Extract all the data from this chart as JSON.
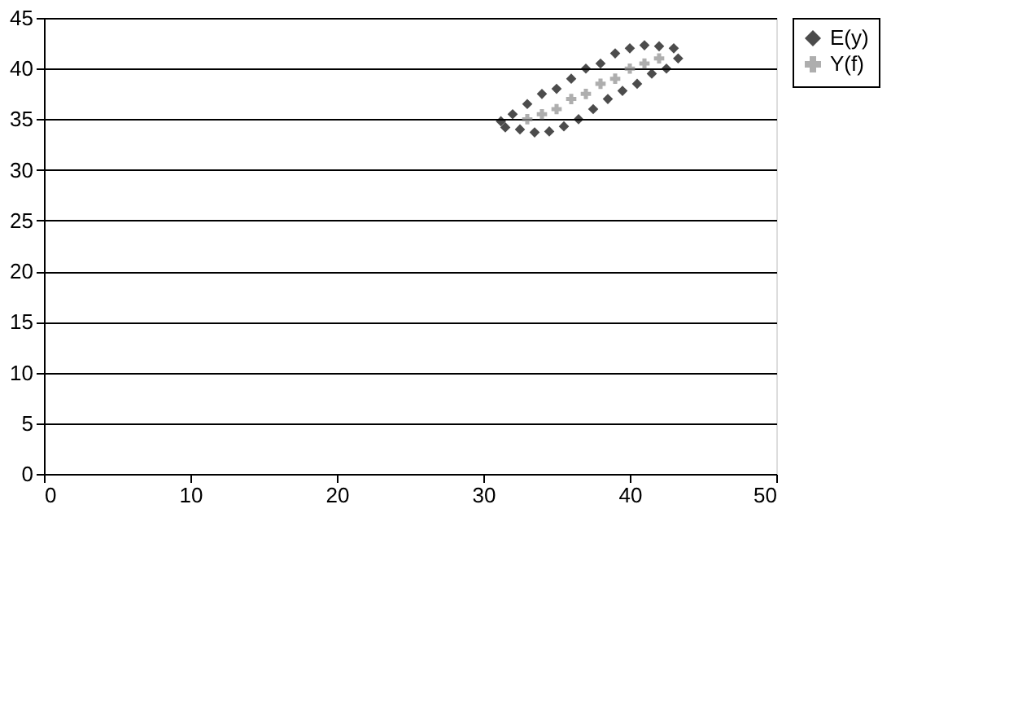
{
  "chart_data": {
    "type": "scatter",
    "xlim": [
      0,
      50
    ],
    "xticks": [
      0,
      10,
      20,
      30,
      40,
      50
    ],
    "ylim": [
      0,
      45
    ],
    "yticks": [
      0,
      5,
      10,
      15,
      20,
      25,
      30,
      35,
      40,
      45
    ],
    "grid": "y",
    "legend": "right",
    "series": [
      {
        "name": "E(y)",
        "color": "#000000",
        "marker": "diamond",
        "x": [
          31.2,
          32,
          33,
          34,
          35,
          36,
          37,
          38,
          39,
          40,
          41,
          42,
          43,
          43.3,
          42.5,
          41.5,
          40.5,
          39.5,
          38.5,
          37.5,
          36.5,
          35.5,
          34.5,
          33.5,
          32.5,
          31.5
        ],
        "values": [
          34.8,
          35.5,
          36.5,
          37.5,
          38,
          39,
          40,
          40.5,
          41.5,
          42,
          42.3,
          42.2,
          42,
          41,
          40,
          39.5,
          38.5,
          37.8,
          37,
          36,
          35,
          34.3,
          33.8,
          33.7,
          34,
          34.2
        ]
      },
      {
        "name": "Y(f)",
        "color": "#8c8c8c",
        "marker": "cross",
        "x": [
          33,
          34,
          35,
          36,
          37,
          38,
          39,
          40,
          41,
          42
        ],
        "values": [
          35,
          35.5,
          36,
          37,
          37.5,
          38.5,
          39,
          40,
          40.5,
          41
        ]
      }
    ]
  }
}
